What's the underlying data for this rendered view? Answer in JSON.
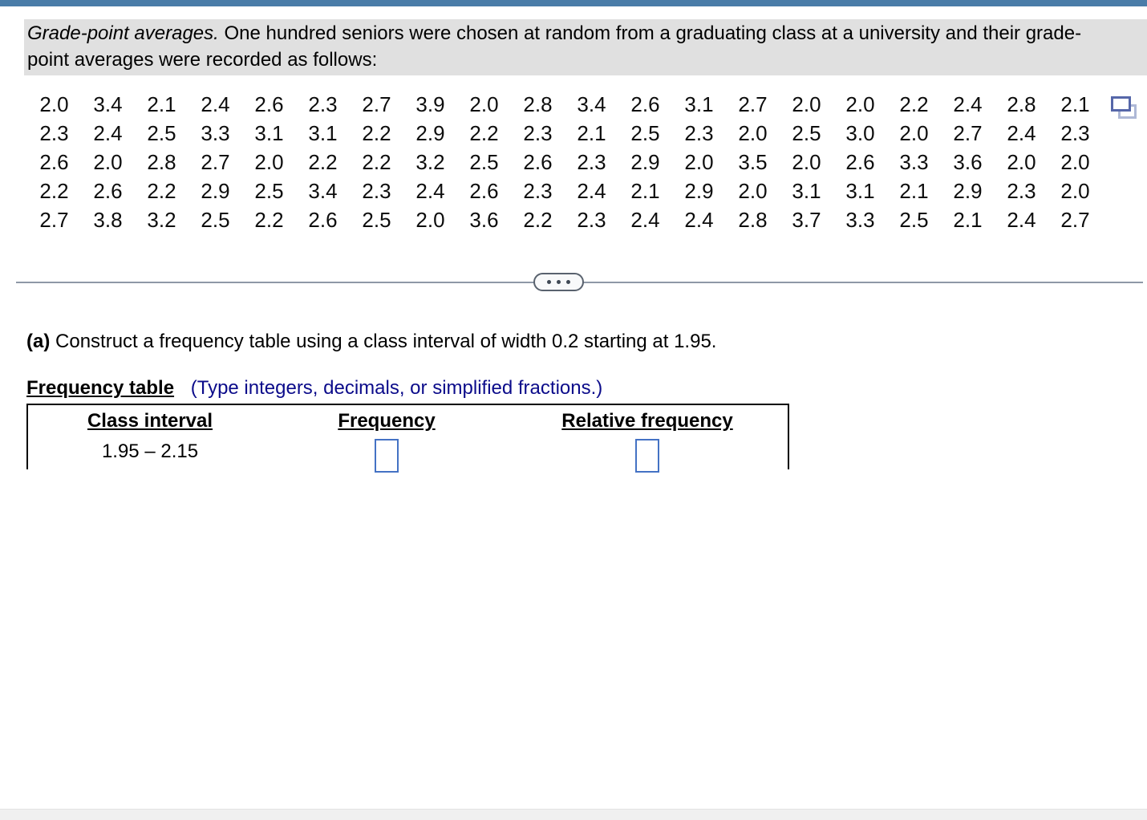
{
  "problem": {
    "lead_italic": "Grade-point averages.",
    "rest": "One hundred seniors were chosen at random from a graduating class at a university and their grade-point averages were recorded as follows:"
  },
  "gpa_grid": {
    "rows": [
      [
        "2.0",
        "3.4",
        "2.1",
        "2.4",
        "2.6",
        "2.3",
        "2.7",
        "3.9",
        "2.0",
        "2.8",
        "3.4",
        "2.6",
        "3.1",
        "2.7",
        "2.0",
        "2.0",
        "2.2",
        "2.4",
        "2.8",
        "2.1"
      ],
      [
        "2.3",
        "2.4",
        "2.5",
        "3.3",
        "3.1",
        "3.1",
        "2.2",
        "2.9",
        "2.2",
        "2.3",
        "2.1",
        "2.5",
        "2.3",
        "2.0",
        "2.5",
        "3.0",
        "2.0",
        "2.7",
        "2.4",
        "2.3"
      ],
      [
        "2.6",
        "2.0",
        "2.8",
        "2.7",
        "2.0",
        "2.2",
        "2.2",
        "3.2",
        "2.5",
        "2.6",
        "2.3",
        "2.9",
        "2.0",
        "3.5",
        "2.0",
        "2.6",
        "3.3",
        "3.6",
        "2.0",
        "2.0"
      ],
      [
        "2.2",
        "2.6",
        "2.2",
        "2.9",
        "2.5",
        "3.4",
        "2.3",
        "2.4",
        "2.6",
        "2.3",
        "2.4",
        "2.1",
        "2.9",
        "2.0",
        "3.1",
        "3.1",
        "2.1",
        "2.9",
        "2.3",
        "2.0"
      ],
      [
        "2.7",
        "3.8",
        "3.2",
        "2.5",
        "2.2",
        "2.6",
        "2.5",
        "2.0",
        "3.6",
        "2.2",
        "2.3",
        "2.4",
        "2.4",
        "2.8",
        "3.7",
        "3.3",
        "2.5",
        "2.1",
        "2.4",
        "2.7"
      ]
    ]
  },
  "icons": {
    "copy": "overlapping-squares",
    "ellipsis": "three-dots"
  },
  "part_a": {
    "label": "(a)",
    "text": "Construct a frequency table using a class interval of width 0.2 starting at 1.95."
  },
  "frequency_table": {
    "title": "Frequency table",
    "hint": "(Type integers, decimals, or simplified fractions.)",
    "headers": [
      "Class interval",
      "Frequency",
      "Relative frequency"
    ],
    "rows": [
      {
        "class_interval": "1.95 – 2.15",
        "frequency_value": "",
        "relative_frequency_value": ""
      }
    ]
  },
  "colors": {
    "top_bar": "#4a7ca8",
    "statement_background": "#e0e0e0",
    "hint_text": "#0b0b8a",
    "answer_box_border": "#4472c4",
    "divider": "#8e98a7"
  }
}
